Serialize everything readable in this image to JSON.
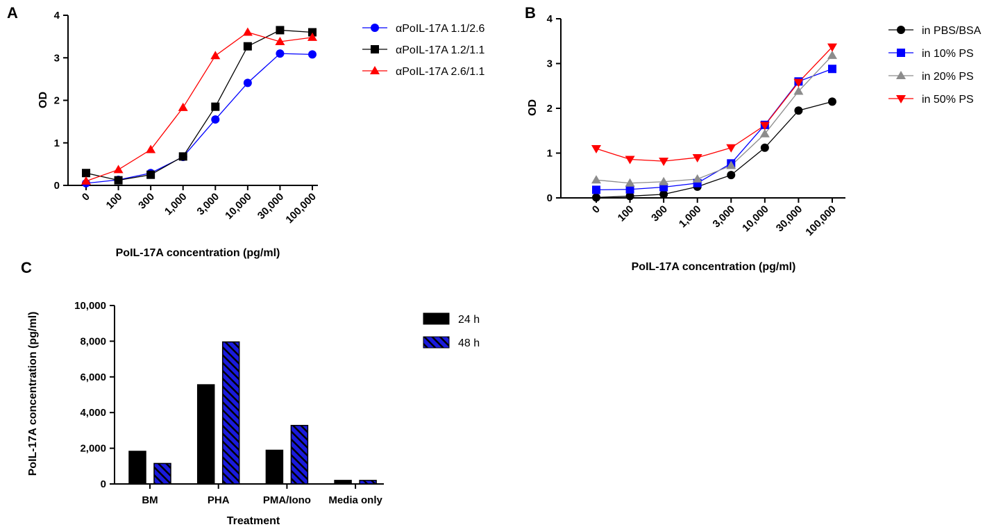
{
  "figure": {
    "panel_labels": [
      "A",
      "B",
      "C"
    ],
    "colors": {
      "blue": "#0000ff",
      "black": "#000000",
      "red": "#ff0000",
      "gray": "#8c8c8c",
      "bar_blue": "#1a1adc"
    }
  },
  "chart_data": [
    {
      "type": "line",
      "panel": "A",
      "categories": [
        "0",
        "100",
        "300",
        "1,000",
        "3,000",
        "10,000",
        "30,000",
        "100,000"
      ],
      "xlabel": "PoIL-17A concentration (pg/ml)",
      "ylabel": "OD",
      "ylim": [
        0,
        4
      ],
      "yticks": [
        "0",
        "1",
        "2",
        "3",
        "4"
      ],
      "legend_position": "right",
      "series": [
        {
          "name": "αPoIL-17A 1.1/2.6",
          "color": "#0000ff",
          "marker": "circle",
          "values": [
            0.05,
            0.13,
            0.29,
            0.67,
            1.55,
            2.41,
            3.1,
            3.08
          ]
        },
        {
          "name": "αPoIL-17A 1.2/1.1",
          "color": "#000000",
          "marker": "square",
          "values": [
            0.29,
            0.12,
            0.25,
            0.68,
            1.85,
            3.27,
            3.65,
            3.6
          ]
        },
        {
          "name": "αPoIL-17A 2.6/1.1",
          "color": "#ff0000",
          "marker": "triangle-up",
          "values": [
            0.1,
            0.37,
            0.84,
            1.83,
            3.05,
            3.6,
            3.38,
            3.48
          ]
        }
      ]
    },
    {
      "type": "line",
      "panel": "B",
      "categories": [
        "0",
        "100",
        "300",
        "1,000",
        "3,000",
        "10,000",
        "30,000",
        "100,000"
      ],
      "xlabel": "PoIL-17A concentration (pg/ml)",
      "ylabel": "OD",
      "ylim": [
        0,
        4
      ],
      "yticks": [
        "0",
        "1",
        "2",
        "3",
        "4"
      ],
      "legend_position": "right",
      "series": [
        {
          "name": "in PBS/BSA",
          "color": "#000000",
          "marker": "circle",
          "values": [
            0.01,
            0.04,
            0.08,
            0.25,
            0.51,
            1.12,
            1.95,
            2.15
          ]
        },
        {
          "name": "in 10% PS",
          "color": "#0000ff",
          "marker": "square",
          "values": [
            0.18,
            0.19,
            0.24,
            0.33,
            0.77,
            1.63,
            2.6,
            2.88
          ]
        },
        {
          "name": "in 20% PS",
          "color": "#8c8c8c",
          "marker": "triangle-up",
          "values": [
            0.4,
            0.33,
            0.36,
            0.42,
            0.72,
            1.43,
            2.38,
            3.18
          ]
        },
        {
          "name": "in 50% PS",
          "color": "#ff0000",
          "marker": "triangle-down",
          "values": [
            1.1,
            0.86,
            0.82,
            0.9,
            1.12,
            1.62,
            2.58,
            3.37
          ]
        }
      ]
    },
    {
      "type": "bar",
      "panel": "C",
      "categories": [
        "BM",
        "PHA",
        "PMA/Iono",
        "Media only"
      ],
      "xlabel": "Treatment",
      "ylabel": "PoIL-17A concentration (pg/ml)",
      "ylim": [
        0,
        10000
      ],
      "yticks": [
        "0",
        "2,000",
        "4,000",
        "6,000",
        "8,000",
        "10,000"
      ],
      "legend_position": "right",
      "series": [
        {
          "name": "24 h",
          "color": "#000000",
          "pattern": "solid",
          "values": [
            1830,
            5560,
            1890,
            200
          ]
        },
        {
          "name": "48 h",
          "color": "#1a1adc",
          "pattern": "hatched",
          "values": [
            1150,
            7960,
            3280,
            200
          ]
        }
      ]
    }
  ]
}
